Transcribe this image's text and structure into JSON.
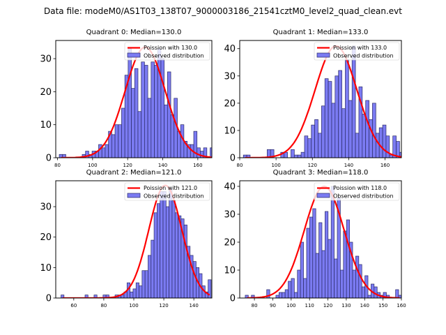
{
  "suptitle": "Data file: modeM0/AS1T03_138T07_9000003186_21541cztM0_level2_quad_clean.evt",
  "colors": {
    "bar_fill": "#7b7bf2",
    "bar_edge": "#2a2a66",
    "poisson_line": "#ff0000"
  },
  "chart_data": [
    {
      "type": "bar",
      "title": "Quadrant 0: Median=130.0",
      "legend": [
        "Poission with 130.0",
        "Observed distribution"
      ],
      "legend_position": "top-right",
      "xlim": [
        79,
        168
      ],
      "ylim": [
        0,
        35.5
      ],
      "xticks": [
        80,
        100,
        120,
        140,
        160
      ],
      "yticks": [
        0,
        10,
        20,
        30
      ],
      "bin_start": 81,
      "bin_width": 1.87,
      "values": [
        1,
        1,
        0,
        0,
        0,
        0,
        0,
        1,
        2,
        1,
        2,
        2,
        4,
        3,
        4,
        8,
        7,
        10,
        10,
        15,
        25,
        33,
        21,
        27,
        14,
        29,
        28,
        18,
        29,
        28,
        33,
        30,
        16,
        26,
        13,
        18,
        8,
        10,
        5,
        4,
        4,
        8,
        3,
        2,
        3,
        0,
        3,
        0,
        2
      ],
      "poisson_mean": 130.0,
      "poisson_peak": 33.5
    },
    {
      "type": "bar",
      "title": "Quadrant 1: Median=133.0",
      "legend": [
        "Poission with 133.0",
        "Observed distribution"
      ],
      "legend_position": "top-right",
      "xlim": [
        80,
        169
      ],
      "ylim": [
        0,
        43
      ],
      "xticks": [
        80,
        100,
        120,
        140,
        160
      ],
      "yticks": [
        0,
        10,
        20,
        30,
        40
      ],
      "bin_start": 82,
      "bin_width": 1.87,
      "values": [
        1,
        1,
        0,
        0,
        0,
        0,
        0,
        3,
        3,
        0,
        0,
        2,
        2,
        0,
        3,
        1,
        1,
        2,
        8,
        7,
        12,
        14,
        9,
        19,
        29,
        28,
        20,
        30,
        32,
        18,
        36,
        21,
        41,
        9,
        26,
        16,
        21,
        14,
        20,
        9,
        11,
        12,
        8,
        1,
        8,
        6,
        2,
        3,
        1,
        3
      ],
      "poisson_mean": 133.0,
      "poisson_peak": 41
    },
    {
      "type": "bar",
      "title": "Quadrant 2: Median=121.0",
      "legend": [
        "Poission with 121.0",
        "Observed distribution"
      ],
      "legend_position": "top-right",
      "xlim": [
        48,
        152
      ],
      "ylim": [
        0,
        38.5
      ],
      "xticks": [
        60,
        80,
        100,
        120,
        140
      ],
      "yticks": [
        0,
        10,
        20,
        30
      ],
      "bin_start": 51.5,
      "bin_width": 2.0,
      "values": [
        1,
        0,
        0,
        0,
        0,
        0,
        0,
        0,
        1,
        0,
        0,
        1,
        0,
        0,
        1,
        1,
        0,
        0,
        1,
        1,
        1,
        2,
        5,
        2,
        3,
        5,
        4,
        9,
        9,
        14,
        19,
        28,
        31,
        35,
        35,
        30,
        36,
        32,
        28,
        27,
        26,
        24,
        17,
        14,
        12,
        10,
        8,
        4,
        2,
        6
      ],
      "poisson_mean": 121.0,
      "poisson_peak": 37
    },
    {
      "type": "bar",
      "title": "Quadrant 3: Median=118.0",
      "legend": [
        "Poission with 118.0",
        "Observed distribution"
      ],
      "legend_position": "top-right",
      "xlim": [
        72,
        160
      ],
      "ylim": [
        0,
        42
      ],
      "xticks": [
        80,
        90,
        100,
        110,
        120,
        130,
        140,
        150,
        160
      ],
      "yticks": [
        0,
        10,
        20,
        30,
        40
      ],
      "bin_start": 75,
      "bin_width": 1.67,
      "values": [
        1,
        0,
        1,
        0,
        0,
        0,
        0,
        3,
        0,
        0,
        1,
        2,
        2,
        3,
        6,
        7,
        2,
        10,
        20,
        7,
        25,
        29,
        32,
        16,
        27,
        17,
        31,
        21,
        40,
        14,
        36,
        10,
        24,
        28,
        20,
        10,
        15,
        12,
        4,
        8,
        1,
        5,
        4,
        2,
        1,
        2,
        1,
        0,
        0,
        3,
        1
      ],
      "poisson_mean": 118.0,
      "poisson_peak": 40
    }
  ]
}
